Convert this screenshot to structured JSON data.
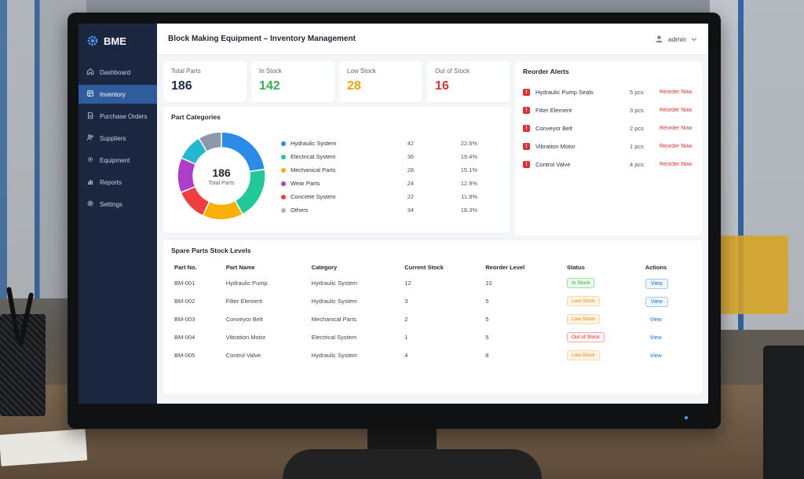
{
  "app": {
    "brand": "BME",
    "title": "Block Making Equipment – Inventory Management",
    "user": "admin"
  },
  "sidebar": {
    "items": [
      {
        "label": "Dashboard",
        "icon": "home-icon"
      },
      {
        "label": "Inventory",
        "icon": "inventory-icon"
      },
      {
        "label": "Purchase Orders",
        "icon": "document-icon"
      },
      {
        "label": "Suppliers",
        "icon": "users-icon"
      },
      {
        "label": "Equipment",
        "icon": "equipment-icon"
      },
      {
        "label": "Reports",
        "icon": "reports-icon"
      },
      {
        "label": "Settings",
        "icon": "gear-icon"
      }
    ],
    "active_index": 1
  },
  "stats": [
    {
      "label": "Total Parts",
      "value": "186",
      "color": "#1e2d4a"
    },
    {
      "label": "In Stock",
      "value": "142",
      "color": "#37b24d"
    },
    {
      "label": "Low Stock",
      "value": "28",
      "color": "#f0a30a"
    },
    {
      "label": "Out of Stock",
      "value": "16",
      "color": "#e03131"
    }
  ],
  "categories": {
    "title": "Part Categories",
    "center_value": "186",
    "center_label": "Total Parts",
    "items": [
      {
        "name": "Hydraulic System",
        "count": "42",
        "pct": "22.6%",
        "color": "#2b8be6"
      },
      {
        "name": "Electrical System",
        "count": "36",
        "pct": "19.4%",
        "color": "#20c997"
      },
      {
        "name": "Mechanical Parts",
        "count": "28",
        "pct": "15.1%",
        "color": "#fab005"
      },
      {
        "name": "Wear Parts",
        "count": "24",
        "pct": "12.9%",
        "color": "#ae3ec9"
      },
      {
        "name": "Concrete System",
        "count": "22",
        "pct": "11.8%",
        "color": "#f03e3e"
      },
      {
        "name": "Others",
        "count": "34",
        "pct": "18.3%",
        "color": "#adb5bd"
      }
    ],
    "slices": [
      {
        "value": 42,
        "color": "#2b8be6"
      },
      {
        "value": 36,
        "color": "#20c997"
      },
      {
        "value": 28,
        "color": "#fab005"
      },
      {
        "value": 22,
        "color": "#f03e3e"
      },
      {
        "value": 24,
        "color": "#ae3ec9"
      },
      {
        "value": 18,
        "color": "#22b8cf"
      },
      {
        "value": 16,
        "color": "#8d99a8"
      }
    ]
  },
  "alerts": {
    "title": "Reorder Alerts",
    "action_label": "Reorder Now",
    "items": [
      {
        "name": "Hydraulic Pump Seals",
        "qty": "5 pcs"
      },
      {
        "name": "Filter Element",
        "qty": "3 pcs"
      },
      {
        "name": "Conveyor Belt",
        "qty": "2 pcs"
      },
      {
        "name": "Vibration Motor",
        "qty": "1 pcs"
      },
      {
        "name": "Control Valve",
        "qty": "4 pcs"
      }
    ]
  },
  "stock_table": {
    "title": "Spare Parts Stock Levels",
    "columns": [
      "Part No.",
      "Part Name",
      "Category",
      "Current Stock",
      "Reorder Level",
      "Status",
      "Actions"
    ],
    "rows": [
      {
        "part_no": "BM-001",
        "name": "Hydraulic Pump",
        "category": "Hydraulic System",
        "stock": "12",
        "reorder": "10",
        "status": "In Stock",
        "status_type": "in",
        "action": "View",
        "action_style": "button"
      },
      {
        "part_no": "BM-002",
        "name": "Filter Element",
        "category": "Hydraulic System",
        "stock": "3",
        "reorder": "5",
        "status": "Low Stock",
        "status_type": "low",
        "action": "View",
        "action_style": "button"
      },
      {
        "part_no": "BM-003",
        "name": "Conveyor Belt",
        "category": "Mechanical Parts",
        "stock": "2",
        "reorder": "5",
        "status": "Low Stock",
        "status_type": "low",
        "action": "View",
        "action_style": "link"
      },
      {
        "part_no": "BM-004",
        "name": "Vibration Motor",
        "category": "Electrical System",
        "stock": "1",
        "reorder": "5",
        "status": "Out of Stock",
        "status_type": "out",
        "action": "View",
        "action_style": "link"
      },
      {
        "part_no": "BM-005",
        "name": "Control Valve",
        "category": "Hydraulic System",
        "stock": "4",
        "reorder": "8",
        "status": "Low Stock",
        "status_type": "low",
        "action": "View",
        "action_style": "link"
      }
    ]
  }
}
